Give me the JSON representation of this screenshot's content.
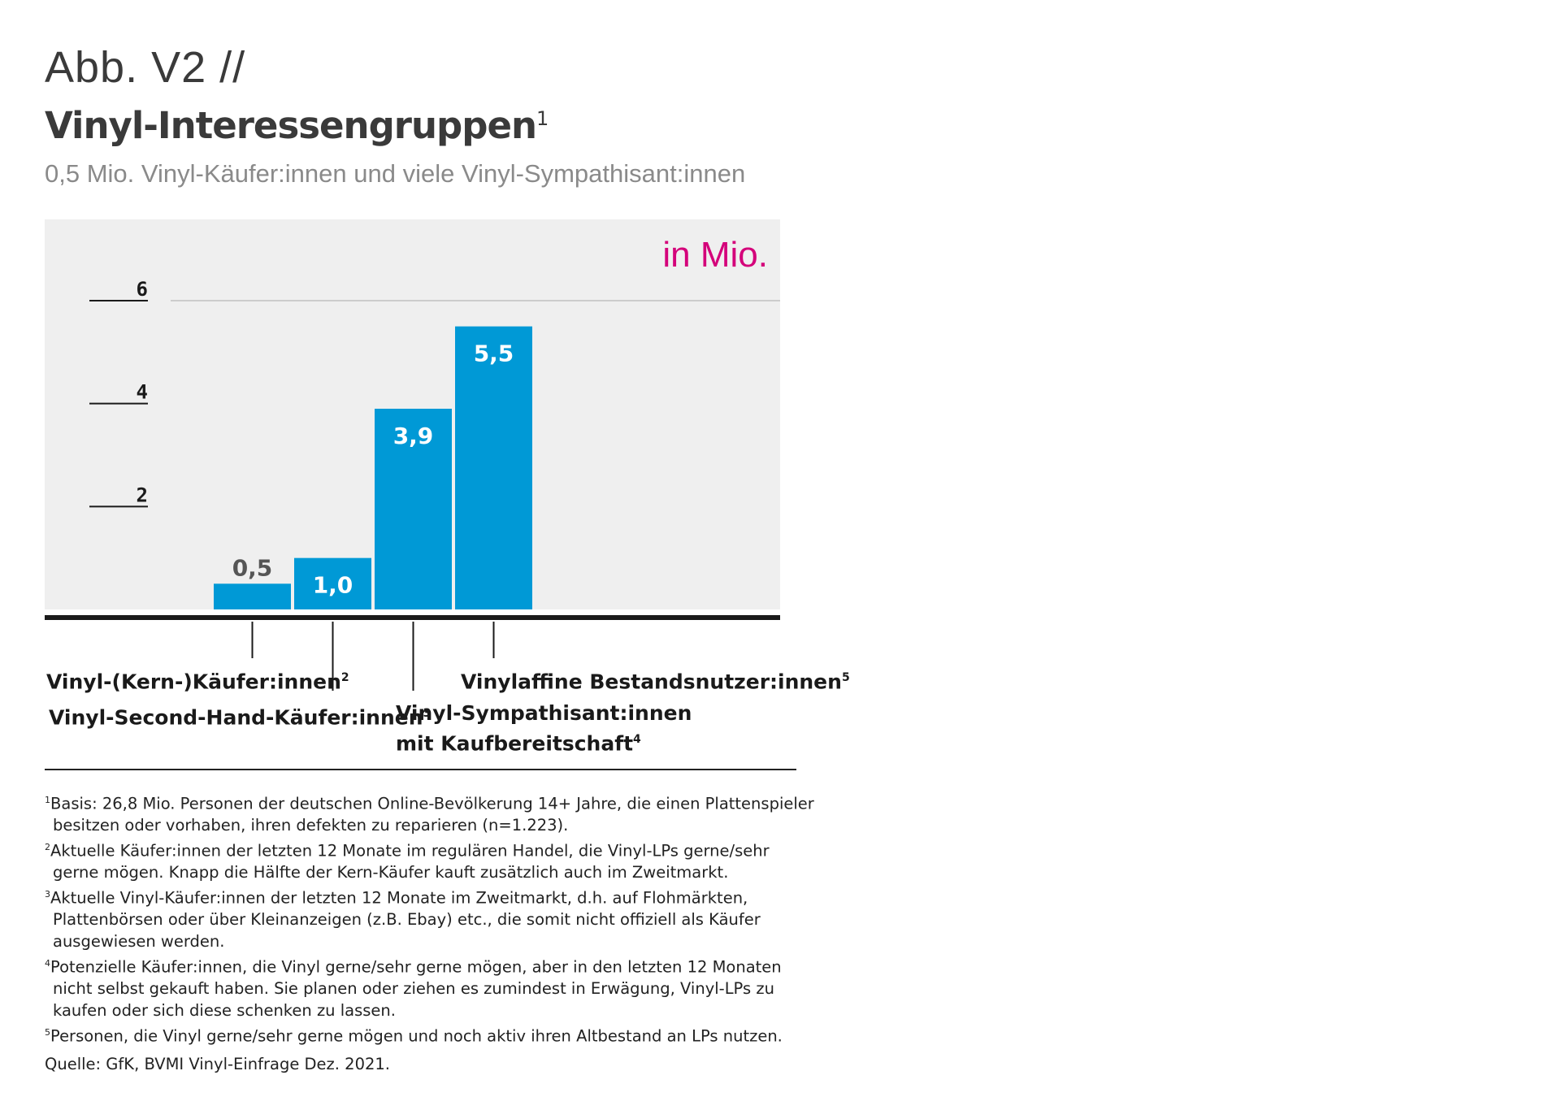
{
  "header": {
    "figure_label": "Abb. V2 //",
    "title": "Vinyl-Interessengruppen",
    "title_sup": "1",
    "subtitle": "0,5 Mio. Vinyl-Käufer:innen und viele Vinyl-Sympathisant:innen"
  },
  "colors": {
    "bar": "#0099d6",
    "panel": "#efefef",
    "unit": "#d4007a",
    "axis": "#1a1a1a",
    "grid": "#cccccc"
  },
  "chart_data": {
    "type": "bar",
    "unit_label": "in Mio.",
    "ylim": [
      0,
      6
    ],
    "yticks": [
      "2",
      "4",
      "6"
    ],
    "categories": [
      {
        "label": "Vinyl-(Kern-)Käufer:innen",
        "sup": "2"
      },
      {
        "label": "Vinyl-Second-Hand-Käufer:innen",
        "sup": "3"
      },
      {
        "label": "Vinyl-Sympathisant:innen mit Kaufbereitschaft",
        "sup": "4"
      },
      {
        "label": "Vinylaffine Bestandsnutzer:innen",
        "sup": "5"
      }
    ],
    "values": [
      0.5,
      1.0,
      3.9,
      5.5
    ],
    "value_labels": [
      "0,5",
      "1,0",
      "3,9",
      "5,5"
    ],
    "grid": "top line only",
    "legend": "none"
  },
  "footnotes": [
    {
      "sup": "1",
      "text": "Basis: 26,8 Mio. Personen der deutschen Online-Bevölkerung 14+ Jahre, die einen Plattenspieler besitzen oder vorhaben, ihren defekten zu reparieren (n=1.223)."
    },
    {
      "sup": "2",
      "text": "Aktuelle Käufer:innen der letzten 12 Monate im regulären Handel, die Vinyl-LPs gerne/sehr gerne mögen. Knapp die Hälfte der Kern-Käufer kauft zusätzlich auch im Zweitmarkt."
    },
    {
      "sup": "3",
      "text": "Aktuelle Vinyl-Käufer:innen der letzten 12 Monate im Zweitmarkt, d.h. auf Flohmärkten, Plattenbörsen oder über Kleinanzeigen (z.B. Ebay) etc., die somit nicht offiziell als Käufer ausgewiesen werden."
    },
    {
      "sup": "4",
      "text": "Potenzielle Käufer:innen, die Vinyl gerne/sehr gerne mögen, aber in den letzten 12 Monaten nicht selbst gekauft haben. Sie planen oder ziehen es zumindest in Erwägung, Vinyl-LPs zu kaufen oder sich diese schenken zu lassen."
    },
    {
      "sup": "5",
      "text": "Personen, die Vinyl gerne/sehr gerne mögen und noch aktiv ihren Altbestand an LPs nutzen."
    }
  ],
  "source": "Quelle: GfK, BVMI Vinyl-Einfrage Dez. 2021."
}
